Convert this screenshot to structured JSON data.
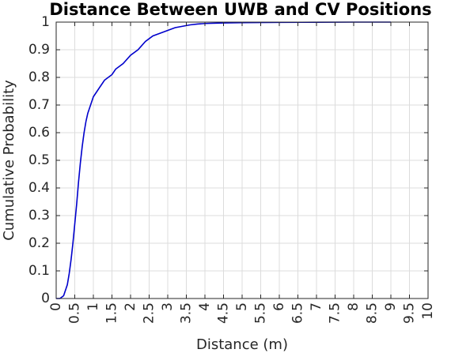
{
  "chart_data": {
    "type": "line",
    "title": "Distance Between UWB and CV Positions",
    "xlabel": "Distance (m)",
    "ylabel": "Cumulative Probability",
    "xlim": [
      0,
      10
    ],
    "ylim": [
      0,
      1
    ],
    "xticks": [
      "0",
      "0.5",
      "1",
      "1.5",
      "2",
      "2.5",
      "3",
      "3.5",
      "4",
      "4.5",
      "5",
      "5.5",
      "6",
      "6.5",
      "7",
      "7.5",
      "8",
      "8.5",
      "9",
      "9.5",
      "10"
    ],
    "yticks": [
      "0",
      "0.1",
      "0.2",
      "0.3",
      "0.4",
      "0.5",
      "0.6",
      "0.7",
      "0.8",
      "0.9",
      "1"
    ],
    "grid": true,
    "series": [
      {
        "color": "#0000cc",
        "x": [
          0,
          0.1,
          0.2,
          0.3,
          0.35,
          0.4,
          0.45,
          0.5,
          0.55,
          0.6,
          0.65,
          0.7,
          0.75,
          0.8,
          0.85,
          0.9,
          0.95,
          1.0,
          1.1,
          1.2,
          1.3,
          1.4,
          1.5,
          1.6,
          1.8,
          2.0,
          2.2,
          2.4,
          2.6,
          2.8,
          3.0,
          3.2,
          3.4,
          3.6,
          3.8,
          4.0,
          4.5,
          5.0,
          6.0,
          7.0,
          8.0,
          9.0
        ],
        "y": [
          0,
          0.0,
          0.01,
          0.05,
          0.09,
          0.14,
          0.2,
          0.27,
          0.34,
          0.42,
          0.49,
          0.55,
          0.6,
          0.64,
          0.67,
          0.69,
          0.71,
          0.73,
          0.75,
          0.77,
          0.79,
          0.8,
          0.81,
          0.83,
          0.85,
          0.88,
          0.9,
          0.93,
          0.95,
          0.96,
          0.97,
          0.98,
          0.985,
          0.99,
          0.993,
          0.995,
          0.997,
          0.998,
          0.999,
          0.9995,
          1.0,
          1.0
        ]
      }
    ]
  }
}
